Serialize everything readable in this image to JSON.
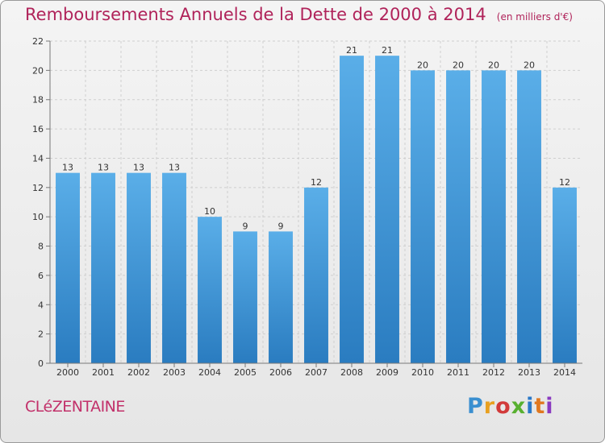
{
  "title": "Remboursements Annuels de la Dette de 2000 à 2014",
  "subtitle": "(en milliers d'€)",
  "footer": {
    "city": "CLéZENTAINE",
    "logo": "Proxiti",
    "logo_colors": [
      "#3a8fd0",
      "#e8a020",
      "#d23a3a",
      "#58b030",
      "#2a78c8",
      "#e07820",
      "#8a3ac0"
    ]
  },
  "colors": {
    "bar_top": "#5aaee8",
    "bar_bottom": "#2a7cc0",
    "title": "#b0235a",
    "grid": "#cfcfcf",
    "axis": "#777777"
  },
  "chart_data": {
    "type": "bar",
    "categories": [
      "2000",
      "2001",
      "2002",
      "2003",
      "2004",
      "2005",
      "2006",
      "2007",
      "2008",
      "2009",
      "2010",
      "2011",
      "2012",
      "2013",
      "2014"
    ],
    "values": [
      13,
      13,
      13,
      13,
      10,
      9,
      9,
      12,
      21,
      21,
      20,
      20,
      20,
      20,
      12
    ],
    "ylim": [
      0,
      22
    ],
    "yticks": [
      0,
      2,
      4,
      6,
      8,
      10,
      12,
      14,
      16,
      18,
      20,
      22
    ],
    "grid": true,
    "data_labels": true
  }
}
